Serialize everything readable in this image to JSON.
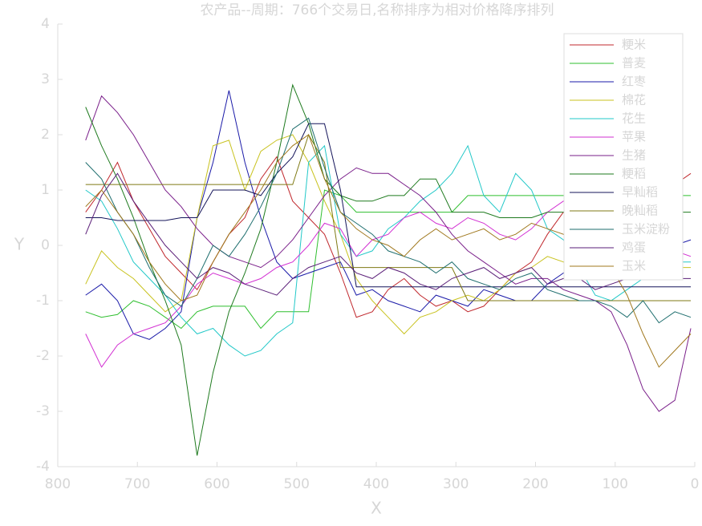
{
  "chart_data": {
    "type": "line",
    "title": "农产品--周期：766个交易日,名称排序为相对价格降序排列",
    "x_label": "X",
    "y_label": "Y",
    "xlim": [
      800,
      0
    ],
    "xticks": [
      800,
      700,
      600,
      500,
      400,
      300,
      200,
      100,
      0
    ],
    "ylim": [
      -4,
      4
    ],
    "yticks": [
      -4,
      -3,
      -2,
      -1,
      0,
      1,
      2,
      3,
      4
    ],
    "legend": "upper-right",
    "x": [
      765,
      745,
      725,
      705,
      685,
      665,
      645,
      625,
      605,
      585,
      565,
      545,
      525,
      505,
      485,
      465,
      445,
      425,
      405,
      385,
      365,
      345,
      325,
      305,
      285,
      265,
      245,
      225,
      205,
      185,
      165,
      145,
      125,
      105,
      85,
      65,
      45,
      25,
      5
    ],
    "series": [
      {
        "name": "粳米",
        "color": "#c0282d",
        "values": [
          0.6,
          1.0,
          1.5,
          0.8,
          0.3,
          -0.2,
          -0.5,
          -0.8,
          -0.3,
          0.2,
          0.5,
          1.2,
          1.6,
          0.8,
          0.5,
          0.2,
          -0.5,
          -1.3,
          -1.2,
          -0.8,
          -0.6,
          -0.9,
          -1.1,
          -1.0,
          -1.2,
          -1.1,
          -0.8,
          -0.5,
          -0.3,
          0.2,
          0.6,
          0.4,
          0.1,
          0.0,
          0.3,
          0.6,
          0.9,
          1.1,
          1.3
        ]
      },
      {
        "name": "普麦",
        "color": "#2fbf2f",
        "values": [
          -1.2,
          -1.3,
          -1.25,
          -1.0,
          -1.1,
          -1.3,
          -1.5,
          -1.2,
          -1.1,
          -1.1,
          -1.1,
          -1.5,
          -1.2,
          -1.2,
          -1.2,
          1.0,
          0.9,
          0.6,
          0.6,
          0.6,
          0.6,
          0.6,
          0.6,
          0.6,
          0.9,
          0.9,
          0.9,
          0.9,
          0.9,
          0.9,
          0.9,
          0.9,
          0.9,
          0.9,
          0.9,
          0.9,
          0.9,
          0.9,
          0.9
        ]
      },
      {
        "name": "红枣",
        "color": "#1a1aa8",
        "values": [
          -0.9,
          -0.7,
          -1.0,
          -1.6,
          -1.7,
          -1.5,
          -1.2,
          0.5,
          1.5,
          2.8,
          1.5,
          0.5,
          -0.3,
          -0.6,
          -0.5,
          -0.4,
          -0.3,
          -0.9,
          -0.8,
          -1.0,
          -1.1,
          -1.2,
          -0.9,
          -1.0,
          -1.1,
          -0.8,
          -0.9,
          -1.0,
          -1.0,
          -0.7,
          -0.5,
          -0.3,
          0.0,
          0.3,
          0.5,
          0.4,
          0.2,
          0.0,
          0.1
        ]
      },
      {
        "name": "棉花",
        "color": "#c8c21e",
        "values": [
          -0.7,
          -0.1,
          -0.4,
          -0.6,
          -0.9,
          -1.2,
          -1.0,
          0.5,
          1.8,
          1.9,
          1.0,
          1.7,
          1.9,
          2.0,
          1.5,
          0.8,
          0.2,
          -0.6,
          -1.0,
          -1.3,
          -1.6,
          -1.3,
          -1.2,
          -1.0,
          -0.9,
          -1.0,
          -0.8,
          -0.5,
          -0.4,
          -0.2,
          -0.3,
          -0.5,
          -0.6,
          -0.4,
          -0.3,
          -0.5,
          -0.3,
          -0.4,
          -0.4
        ]
      },
      {
        "name": "花生",
        "color": "#22c8c8",
        "values": [
          1.0,
          0.8,
          0.3,
          -0.3,
          -0.6,
          -0.9,
          -1.3,
          -1.6,
          -1.5,
          -1.8,
          -2.0,
          -1.9,
          -1.6,
          -1.4,
          1.5,
          1.8,
          0.2,
          -0.2,
          -0.1,
          0.3,
          0.5,
          0.8,
          1.0,
          1.3,
          1.8,
          0.9,
          0.6,
          1.3,
          1.0,
          0.3,
          0.1,
          -0.4,
          -0.9,
          -1.0,
          -0.8,
          -0.6,
          -0.4,
          -0.3,
          -0.3
        ]
      },
      {
        "name": "苹果",
        "color": "#d22fd2",
        "values": [
          -1.6,
          -2.2,
          -1.8,
          -1.6,
          -1.5,
          -1.4,
          -1.1,
          -0.7,
          -0.5,
          -0.6,
          -0.7,
          -0.6,
          -0.4,
          -0.3,
          0.0,
          0.4,
          0.3,
          -0.2,
          0.1,
          0.2,
          0.5,
          0.6,
          0.4,
          0.3,
          0.5,
          0.4,
          0.2,
          0.1,
          0.3,
          0.6,
          0.8,
          0.7,
          0.9,
          0.6,
          0.3,
          0.1,
          0.0,
          -0.1,
          -0.2
        ]
      },
      {
        "name": "生猪",
        "color": "#7a1f8a",
        "values": [
          1.9,
          2.7,
          2.4,
          2.0,
          1.5,
          1.0,
          0.7,
          0.3,
          0.0,
          -0.2,
          -0.3,
          -0.4,
          -0.2,
          0.1,
          0.5,
          0.9,
          1.2,
          1.4,
          1.3,
          1.3,
          1.1,
          0.9,
          0.6,
          0.2,
          -0.1,
          -0.3,
          -0.5,
          -0.7,
          -0.6,
          -0.6,
          -0.8,
          -0.9,
          -1.0,
          -1.2,
          -1.8,
          -2.6,
          -3.0,
          -2.8,
          -1.5
        ]
      },
      {
        "name": "粳稻",
        "color": "#1e7a1e",
        "values": [
          2.5,
          1.8,
          1.2,
          0.5,
          -0.3,
          -1.0,
          -1.8,
          -3.8,
          -2.3,
          -1.2,
          -0.5,
          0.3,
          1.5,
          2.9,
          2.2,
          1.2,
          0.9,
          0.8,
          0.8,
          0.9,
          0.9,
          1.2,
          1.2,
          0.6,
          0.6,
          0.6,
          0.5,
          0.5,
          0.5,
          0.6,
          0.6,
          0.6,
          0.6,
          0.6,
          0.6,
          0.6,
          0.6,
          0.6,
          0.6
        ]
      },
      {
        "name": "早籼稻",
        "color": "#14145a",
        "values": [
          0.5,
          0.5,
          0.45,
          0.45,
          0.45,
          0.45,
          0.5,
          0.5,
          1.0,
          1.0,
          1.0,
          0.9,
          1.3,
          1.6,
          2.2,
          2.2,
          1.0,
          -0.75,
          -0.75,
          -0.75,
          -0.75,
          -0.75,
          -0.75,
          -0.75,
          -0.75,
          -0.75,
          -0.75,
          -0.75,
          -0.75,
          -0.75,
          -0.75,
          -0.75,
          -0.75,
          -0.75,
          -0.75,
          -0.75,
          -0.75,
          -0.75,
          -0.75
        ]
      },
      {
        "name": "晚籼稻",
        "color": "#7f7a14",
        "values": [
          1.1,
          1.1,
          1.1,
          1.1,
          1.1,
          1.1,
          1.1,
          1.1,
          1.1,
          1.1,
          1.1,
          1.1,
          1.1,
          1.1,
          2.0,
          1.5,
          -0.4,
          -0.4,
          -0.4,
          -0.4,
          -0.4,
          -0.4,
          -0.4,
          -0.4,
          -1.0,
          -1.0,
          -1.0,
          -1.0,
          -1.0,
          -1.0,
          -1.0,
          -1.0,
          -1.0,
          -1.0,
          -1.0,
          -1.0,
          -1.0,
          -1.0,
          -1.0
        ]
      },
      {
        "name": "玉米淀粉",
        "color": "#1e6e6e",
        "values": [
          1.5,
          1.2,
          0.6,
          0.2,
          -0.4,
          -0.9,
          -1.1,
          -0.6,
          0.0,
          -0.2,
          0.2,
          0.7,
          1.3,
          2.1,
          2.3,
          1.4,
          0.6,
          0.4,
          0.2,
          -0.1,
          -0.2,
          -0.3,
          -0.5,
          -0.3,
          -0.6,
          -0.7,
          -0.8,
          -0.6,
          -0.5,
          -0.8,
          -0.9,
          -1.0,
          -1.0,
          -1.1,
          -1.3,
          -1.0,
          -1.4,
          -1.2,
          -1.3
        ]
      },
      {
        "name": "鸡蛋",
        "color": "#5a1e78",
        "values": [
          0.2,
          0.9,
          1.3,
          0.8,
          0.4,
          0.0,
          -0.3,
          -0.6,
          -0.4,
          -0.5,
          -0.7,
          -0.8,
          -0.9,
          -0.6,
          -0.4,
          -0.3,
          -0.2,
          -0.5,
          -0.6,
          -0.4,
          -0.5,
          -0.7,
          -0.8,
          -0.6,
          -0.5,
          -0.4,
          -0.6,
          -0.5,
          -0.4,
          -0.7,
          -0.6,
          -0.6,
          -0.8,
          -0.7,
          -0.6,
          -0.5,
          -0.6,
          -0.6,
          -0.6
        ]
      },
      {
        "name": "玉米",
        "color": "#a0781e",
        "values": [
          0.7,
          1.0,
          0.6,
          0.2,
          -0.3,
          -0.7,
          -1.0,
          -0.9,
          -0.3,
          0.2,
          0.6,
          1.0,
          1.5,
          1.8,
          2.0,
          1.2,
          0.6,
          0.3,
          0.1,
          0.0,
          -0.2,
          0.1,
          0.3,
          0.1,
          0.2,
          0.3,
          0.1,
          0.2,
          0.4,
          0.3,
          0.2,
          0.0,
          -0.2,
          -0.4,
          -0.9,
          -1.6,
          -2.2,
          -1.9,
          -1.6
        ]
      }
    ]
  }
}
